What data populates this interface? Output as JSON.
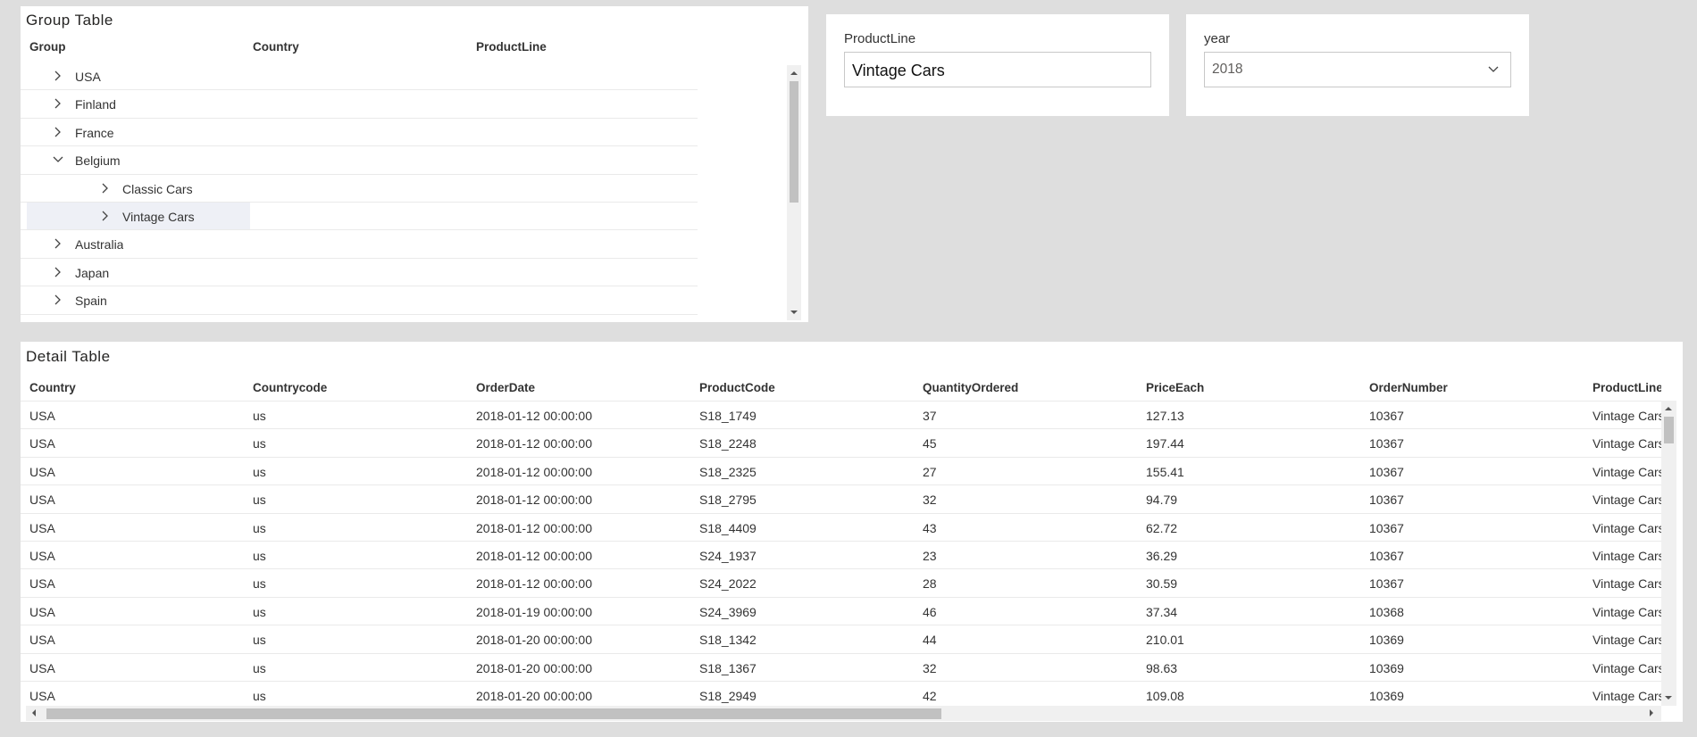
{
  "group_table": {
    "title": "Group Table",
    "headers": [
      "Group",
      "Country",
      "ProductLine"
    ],
    "groups": [
      {
        "label": "USA"
      },
      {
        "label": "Finland"
      },
      {
        "label": "France"
      },
      {
        "label": "Belgium",
        "expanded": true,
        "children": [
          {
            "label": "Classic Cars"
          },
          {
            "label": "Vintage Cars",
            "selected": true
          }
        ]
      },
      {
        "label": "Australia"
      },
      {
        "label": "Japan"
      },
      {
        "label": "Spain"
      }
    ]
  },
  "filters": [
    {
      "label": "ProductLine",
      "value": "Vintage Cars",
      "dropdown": false
    },
    {
      "label": "year",
      "value": "2018",
      "dropdown": true
    }
  ],
  "detail_table": {
    "title": "Detail Table",
    "headers": [
      "Country",
      "Countrycode",
      "OrderDate",
      "ProductCode",
      "QuantityOrdered",
      "PriceEach",
      "OrderNumber",
      "ProductLine"
    ],
    "rows": [
      [
        "USA",
        "us",
        "2018-01-12 00:00:00",
        "S18_1749",
        37,
        127.13,
        10367,
        "Vintage Cars"
      ],
      [
        "USA",
        "us",
        "2018-01-12 00:00:00",
        "S18_2248",
        45,
        197.44,
        10367,
        "Vintage Cars"
      ],
      [
        "USA",
        "us",
        "2018-01-12 00:00:00",
        "S18_2325",
        27,
        155.41,
        10367,
        "Vintage Cars"
      ],
      [
        "USA",
        "us",
        "2018-01-12 00:00:00",
        "S18_2795",
        32,
        94.79,
        10367,
        "Vintage Cars"
      ],
      [
        "USA",
        "us",
        "2018-01-12 00:00:00",
        "S18_4409",
        43,
        62.72,
        10367,
        "Vintage Cars"
      ],
      [
        "USA",
        "us",
        "2018-01-12 00:00:00",
        "S24_1937",
        23,
        36.29,
        10367,
        "Vintage Cars"
      ],
      [
        "USA",
        "us",
        "2018-01-12 00:00:00",
        "S24_2022",
        28,
        30.59,
        10367,
        "Vintage Cars"
      ],
      [
        "USA",
        "us",
        "2018-01-19 00:00:00",
        "S24_3969",
        46,
        37.34,
        10368,
        "Vintage Cars"
      ],
      [
        "USA",
        "us",
        "2018-01-20 00:00:00",
        "S18_1342",
        44,
        210.01,
        10369,
        "Vintage Cars"
      ],
      [
        "USA",
        "us",
        "2018-01-20 00:00:00",
        "S18_1367",
        32,
        98.63,
        10369,
        "Vintage Cars"
      ],
      [
        "USA",
        "us",
        "2018-01-20 00:00:00",
        "S18_2949",
        42,
        109.08,
        10369,
        "Vintage Cars"
      ]
    ]
  }
}
